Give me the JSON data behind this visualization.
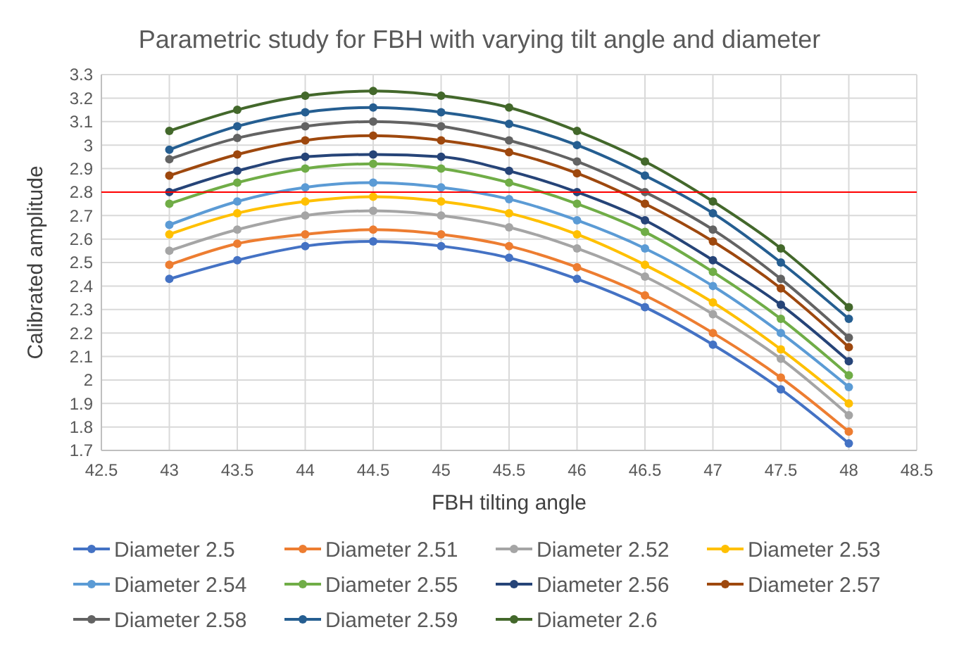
{
  "chart_data": {
    "type": "line",
    "title": "Parametric study for FBH with varying tilt angle and diameter",
    "xlabel": "FBH tilting angle",
    "ylabel": "Calibrated amplitude",
    "x": [
      43,
      43.5,
      44,
      44.5,
      45,
      45.5,
      46,
      46.5,
      47,
      47.5,
      48
    ],
    "xlim": [
      42.5,
      48.5
    ],
    "xticks": [
      42.5,
      43,
      43.5,
      44,
      44.5,
      45,
      45.5,
      46,
      46.5,
      47,
      47.5,
      48,
      48.5
    ],
    "ylim": [
      1.7,
      3.3
    ],
    "yticks": [
      1.7,
      1.8,
      1.9,
      2,
      2.1,
      2.2,
      2.3,
      2.4,
      2.5,
      2.6,
      2.7,
      2.8,
      2.9,
      3,
      3.1,
      3.2,
      3.3
    ],
    "grid": true,
    "legend": "bottom",
    "marker": "circle",
    "line_style": "solid",
    "ref_lines": [
      {
        "axis": "y",
        "value": 2.8,
        "color": "#ff0000"
      }
    ],
    "series": [
      {
        "name": "Diameter 2.5",
        "color": "#4472c4",
        "values": [
          2.43,
          2.51,
          2.57,
          2.59,
          2.57,
          2.52,
          2.43,
          2.31,
          2.15,
          1.96,
          1.73
        ]
      },
      {
        "name": "Diameter 2.51",
        "color": "#ed7d31",
        "values": [
          2.49,
          2.58,
          2.62,
          2.64,
          2.62,
          2.57,
          2.48,
          2.36,
          2.2,
          2.01,
          1.78
        ]
      },
      {
        "name": "Diameter 2.52",
        "color": "#a5a5a5",
        "values": [
          2.55,
          2.64,
          2.7,
          2.72,
          2.7,
          2.65,
          2.56,
          2.44,
          2.28,
          2.09,
          1.85
        ]
      },
      {
        "name": "Diameter 2.53",
        "color": "#ffc000",
        "values": [
          2.62,
          2.71,
          2.76,
          2.78,
          2.76,
          2.71,
          2.62,
          2.49,
          2.33,
          2.13,
          1.9
        ]
      },
      {
        "name": "Diameter 2.54",
        "color": "#5b9bd5",
        "values": [
          2.66,
          2.76,
          2.82,
          2.84,
          2.82,
          2.77,
          2.68,
          2.56,
          2.4,
          2.2,
          1.97
        ]
      },
      {
        "name": "Diameter 2.55",
        "color": "#70ad47",
        "values": [
          2.75,
          2.84,
          2.9,
          2.92,
          2.9,
          2.84,
          2.75,
          2.63,
          2.46,
          2.26,
          2.02
        ]
      },
      {
        "name": "Diameter 2.56",
        "color": "#264478",
        "values": [
          2.8,
          2.89,
          2.95,
          2.96,
          2.95,
          2.89,
          2.8,
          2.68,
          2.51,
          2.32,
          2.08
        ]
      },
      {
        "name": "Diameter 2.57",
        "color": "#9e480e",
        "values": [
          2.87,
          2.96,
          3.02,
          3.04,
          3.02,
          2.97,
          2.88,
          2.75,
          2.59,
          2.39,
          2.14
        ]
      },
      {
        "name": "Diameter 2.58",
        "color": "#636363",
        "values": [
          2.94,
          3.03,
          3.08,
          3.1,
          3.08,
          3.02,
          2.93,
          2.8,
          2.64,
          2.43,
          2.18
        ]
      },
      {
        "name": "Diameter 2.59",
        "color": "#255e91",
        "values": [
          2.98,
          3.08,
          3.14,
          3.16,
          3.14,
          3.09,
          3,
          2.87,
          2.71,
          2.5,
          2.26
        ]
      },
      {
        "name": "Diameter 2.6",
        "color": "#43682b",
        "values": [
          3.06,
          3.15,
          3.21,
          3.23,
          3.21,
          3.16,
          3.06,
          2.93,
          2.76,
          2.56,
          2.31
        ]
      }
    ]
  }
}
